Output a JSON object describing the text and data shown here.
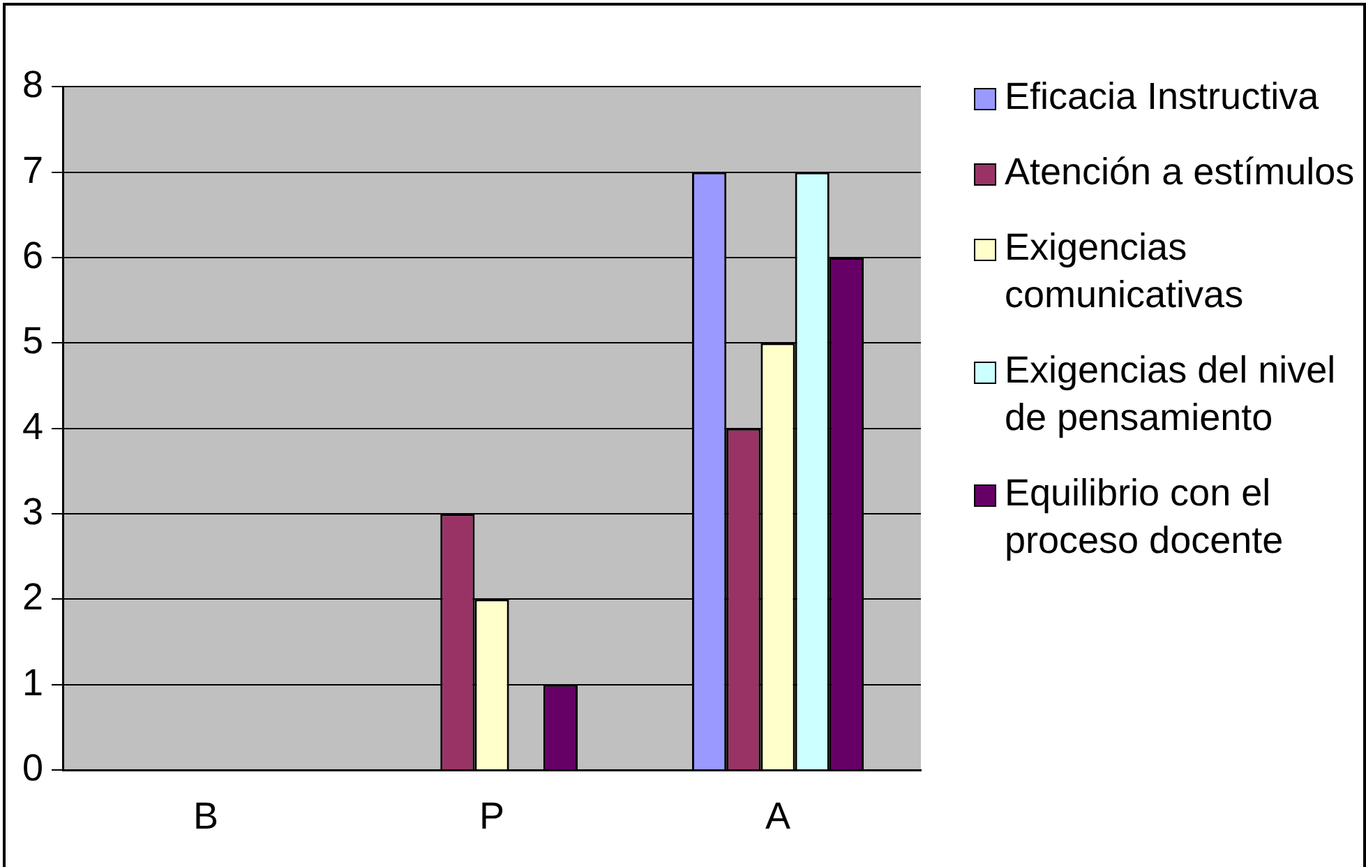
{
  "chart_data": {
    "type": "bar",
    "categories": [
      "B",
      "P",
      "A"
    ],
    "series": [
      {
        "name": "Eficacia Instructiva",
        "color": "#9999ff",
        "values": [
          0,
          0,
          7
        ]
      },
      {
        "name": "Atención a estímulos",
        "color": "#993366",
        "values": [
          0,
          3,
          4
        ]
      },
      {
        "name": "Exigencias comunicativas",
        "color": "#ffffcc",
        "values": [
          0,
          2,
          5
        ]
      },
      {
        "name": "Exigencias del nivel de pensamiento",
        "color": "#ccffff",
        "values": [
          0,
          0,
          7
        ]
      },
      {
        "name": "Equilibrio con el proceso docente",
        "color": "#660066",
        "values": [
          0,
          1,
          6
        ]
      }
    ],
    "ylim": [
      0,
      8
    ],
    "yticks": [
      0,
      1,
      2,
      3,
      4,
      5,
      6,
      7,
      8
    ],
    "grid": "y",
    "legend": "right"
  }
}
